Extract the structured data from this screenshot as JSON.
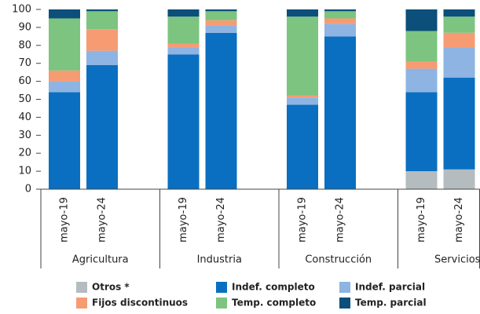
{
  "chart_data": {
    "type": "stacked_bar",
    "groups": [
      "Agricultura",
      "Industria",
      "Construcción",
      "Servicios"
    ],
    "categories": [
      "mayo-19",
      "mayo-24",
      "mayo-19",
      "mayo-24",
      "mayo-19",
      "mayo-24",
      "mayo-19",
      "mayo-24"
    ],
    "series": [
      {
        "name": "Otros *",
        "color": "#b4bcbf",
        "values": [
          0,
          0,
          0,
          0,
          0,
          0,
          10,
          11
        ]
      },
      {
        "name": "Indef. completo",
        "color": "#0a6fc0",
        "values": [
          54,
          69,
          75,
          87,
          47,
          85,
          44,
          51
        ]
      },
      {
        "name": "Indef. parcial",
        "color": "#8db4e2",
        "values": [
          6,
          8,
          4,
          4,
          4,
          7,
          13,
          17
        ]
      },
      {
        "name": "Fijos discontinuos",
        "color": "#f79b72",
        "values": [
          6,
          12,
          2,
          3,
          1,
          3,
          4,
          8
        ]
      },
      {
        "name": "Temp. completo",
        "color": "#7cc47f",
        "values": [
          29,
          10,
          15,
          5,
          44,
          4,
          17,
          9
        ]
      },
      {
        "name": "Temp. parcial",
        "color": "#0b4f7a",
        "values": [
          5,
          1,
          4,
          1,
          4,
          1,
          12,
          4
        ]
      }
    ],
    "ylim": [
      0,
      100
    ],
    "yticks": [
      0,
      10,
      20,
      30,
      40,
      50,
      60,
      70,
      80,
      90,
      100
    ],
    "grid": false
  }
}
